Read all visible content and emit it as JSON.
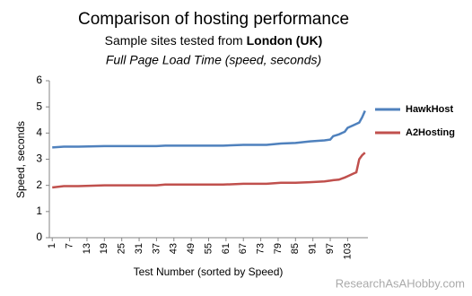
{
  "chart_data": {
    "type": "line",
    "title": "Comparison of hosting performance",
    "subtitle": [
      "Sample sites tested from",
      "London (UK)"
    ],
    "subtitle2": "Full Page Load Time (speed, seconds)",
    "x_label": "Test Number (sorted by Speed)",
    "y_label": "Speed,  seconds",
    "watermark": "ResearchAsAHobby.com",
    "x": [
      1,
      5,
      10,
      19,
      30,
      37,
      40,
      50,
      60,
      67,
      75,
      80,
      85,
      90,
      95,
      97,
      98,
      100,
      102,
      103,
      105,
      106,
      107,
      108,
      109
    ],
    "series": [
      {
        "name": "HawkHost",
        "color": "#4f81bd",
        "values": [
          3.45,
          3.48,
          3.48,
          3.5,
          3.5,
          3.5,
          3.52,
          3.52,
          3.52,
          3.55,
          3.55,
          3.6,
          3.62,
          3.68,
          3.72,
          3.75,
          3.88,
          3.95,
          4.05,
          4.2,
          4.3,
          4.35,
          4.4,
          4.6,
          4.85
        ]
      },
      {
        "name": "A2Hosting",
        "color": "#c0504d",
        "values": [
          1.92,
          1.97,
          1.97,
          2.0,
          2.0,
          2.0,
          2.03,
          2.03,
          2.03,
          2.06,
          2.06,
          2.1,
          2.1,
          2.12,
          2.15,
          2.18,
          2.2,
          2.22,
          2.3,
          2.35,
          2.45,
          2.5,
          3.0,
          3.15,
          3.25
        ]
      }
    ],
    "xlim": [
      0,
      110
    ],
    "xticks": [
      1,
      7,
      13,
      19,
      25,
      31,
      37,
      43,
      49,
      55,
      61,
      67,
      73,
      79,
      85,
      91,
      97,
      103
    ],
    "ylim": [
      0,
      6
    ],
    "yticks": [
      0,
      1,
      2,
      3,
      4,
      5,
      6
    ],
    "grid": false,
    "legend": "right"
  }
}
